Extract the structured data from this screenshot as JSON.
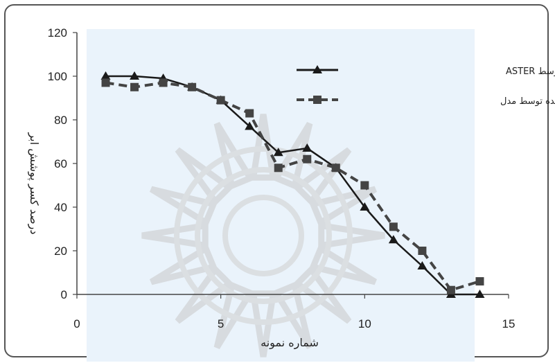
{
  "chart_data": {
    "type": "line",
    "xlabel": "شماره نمونه",
    "ylabel": "درصد کسر پوشش ابر",
    "xlim": [
      0,
      15
    ],
    "ylim": [
      0,
      120
    ],
    "xticks": [
      "0",
      "5",
      "10",
      "15"
    ],
    "yticks": [
      "0",
      "20",
      "40",
      "60",
      "80",
      "100",
      "120"
    ],
    "legend_position": "top-right",
    "grid": false,
    "series": [
      {
        "name": "کسر پوشش ابر برآورد شده توسط ASTER",
        "style": "solid",
        "marker": "triangle",
        "color": "#1a1a1a",
        "x": [
          1,
          2,
          3,
          4,
          5,
          6,
          7,
          8,
          9,
          10,
          11,
          12,
          13,
          14
        ],
        "y": [
          100,
          100,
          99,
          95,
          89,
          77,
          65,
          67,
          58,
          40,
          25,
          13,
          0,
          0
        ]
      },
      {
        "name": "کسر پوشش ابر برآورد شده توسط مدل",
        "style": "dashed",
        "marker": "square",
        "color": "#444444",
        "x": [
          1,
          2,
          3,
          4,
          5,
          6,
          7,
          8,
          9,
          10,
          11,
          12,
          13,
          14
        ],
        "y": [
          97,
          95,
          97,
          95,
          89,
          83,
          58,
          62,
          58,
          50,
          31,
          20,
          2,
          6
        ]
      }
    ]
  }
}
